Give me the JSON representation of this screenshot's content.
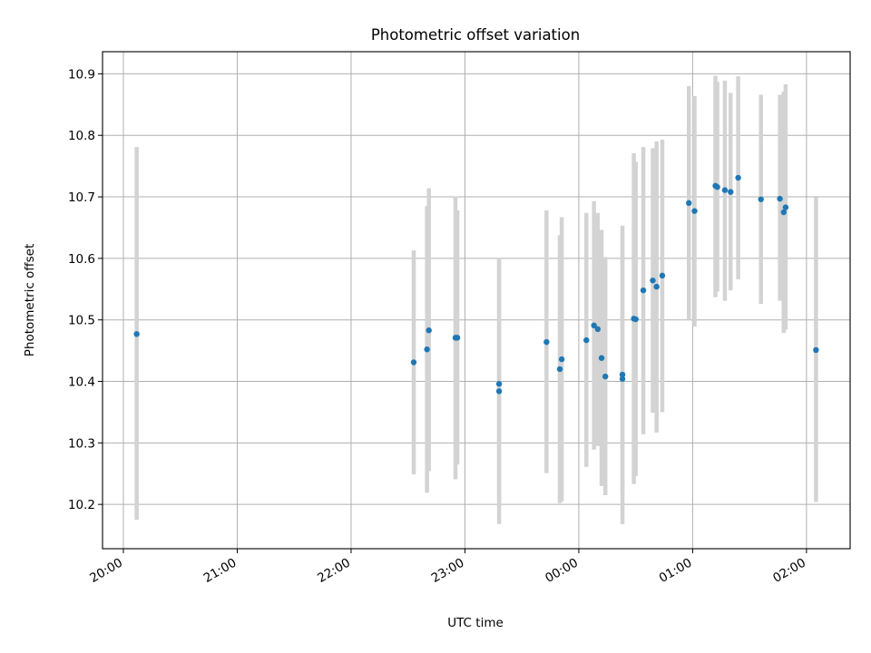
{
  "chart_data": {
    "type": "scatter",
    "title": "Photometric offset variation",
    "xlabel": "UTC time",
    "ylabel": "Photometric offset",
    "x_unit": "UTC time, hours (after 24:00 = next day)",
    "xlim": [
      "19:49",
      "26:23"
    ],
    "ylim": [
      10.128,
      10.936
    ],
    "x_ticks": [
      {
        "t": "20:00",
        "label": "20:00"
      },
      {
        "t": "21:00",
        "label": "21:00"
      },
      {
        "t": "22:00",
        "label": "22:00"
      },
      {
        "t": "23:00",
        "label": "23:00"
      },
      {
        "t": "24:00",
        "label": "00:00"
      },
      {
        "t": "25:00",
        "label": "01:00"
      },
      {
        "t": "26:00",
        "label": "02:00"
      }
    ],
    "y_ticks": [
      10.2,
      10.3,
      10.4,
      10.5,
      10.6,
      10.7,
      10.8,
      10.9
    ],
    "grid": true,
    "marker_color": "#1f77b4",
    "errorbar_color": "#d3d3d3",
    "points": [
      {
        "t": "20:07",
        "y": 10.477,
        "lo": 10.175,
        "hi": 10.781
      },
      {
        "t": "22:33",
        "y": 10.431,
        "lo": 10.249,
        "hi": 10.613
      },
      {
        "t": "22:40",
        "y": 10.452,
        "lo": 10.219,
        "hi": 10.685
      },
      {
        "t": "22:41",
        "y": 10.483,
        "lo": 10.254,
        "hi": 10.714
      },
      {
        "t": "22:55",
        "y": 10.471,
        "lo": 10.241,
        "hi": 10.701
      },
      {
        "t": "22:56",
        "y": 10.471,
        "lo": 10.265,
        "hi": 10.678
      },
      {
        "t": "23:18",
        "y": 10.396,
        "lo": 10.195,
        "hi": 10.598
      },
      {
        "t": "23:18",
        "y": 10.384,
        "lo": 10.168,
        "hi": 10.6
      },
      {
        "t": "23:43",
        "y": 10.464,
        "lo": 10.251,
        "hi": 10.678
      },
      {
        "t": "23:50",
        "y": 10.42,
        "lo": 10.202,
        "hi": 10.638
      },
      {
        "t": "23:51",
        "y": 10.436,
        "lo": 10.205,
        "hi": 10.667
      },
      {
        "t": "24:04",
        "y": 10.467,
        "lo": 10.261,
        "hi": 10.674
      },
      {
        "t": "24:08",
        "y": 10.491,
        "lo": 10.289,
        "hi": 10.693
      },
      {
        "t": "24:10",
        "y": 10.485,
        "lo": 10.295,
        "hi": 10.674
      },
      {
        "t": "24:12",
        "y": 10.438,
        "lo": 10.23,
        "hi": 10.646
      },
      {
        "t": "24:14",
        "y": 10.408,
        "lo": 10.215,
        "hi": 10.602
      },
      {
        "t": "24:23",
        "y": 10.404,
        "lo": 10.168,
        "hi": 10.641
      },
      {
        "t": "24:23",
        "y": 10.411,
        "lo": 10.218,
        "hi": 10.653
      },
      {
        "t": "24:29",
        "y": 10.502,
        "lo": 10.233,
        "hi": 10.771
      },
      {
        "t": "24:30",
        "y": 10.501,
        "lo": 10.246,
        "hi": 10.757
      },
      {
        "t": "24:34",
        "y": 10.548,
        "lo": 10.314,
        "hi": 10.781
      },
      {
        "t": "24:39",
        "y": 10.564,
        "lo": 10.349,
        "hi": 10.779
      },
      {
        "t": "24:41",
        "y": 10.554,
        "lo": 10.317,
        "hi": 10.79
      },
      {
        "t": "24:44",
        "y": 10.572,
        "lo": 10.35,
        "hi": 10.793
      },
      {
        "t": "24:58",
        "y": 10.69,
        "lo": 10.5,
        "hi": 10.88
      },
      {
        "t": "25:01",
        "y": 10.677,
        "lo": 10.489,
        "hi": 10.864
      },
      {
        "t": "25:12",
        "y": 10.718,
        "lo": 10.537,
        "hi": 10.897
      },
      {
        "t": "25:13",
        "y": 10.716,
        "lo": 10.546,
        "hi": 10.887
      },
      {
        "t": "25:17",
        "y": 10.711,
        "lo": 10.531,
        "hi": 10.889
      },
      {
        "t": "25:20",
        "y": 10.708,
        "lo": 10.548,
        "hi": 10.869
      },
      {
        "t": "25:24",
        "y": 10.731,
        "lo": 10.566,
        "hi": 10.896
      },
      {
        "t": "25:36",
        "y": 10.696,
        "lo": 10.526,
        "hi": 10.866
      },
      {
        "t": "25:46",
        "y": 10.697,
        "lo": 10.531,
        "hi": 10.866
      },
      {
        "t": "25:48",
        "y": 10.675,
        "lo": 10.479,
        "hi": 10.871
      },
      {
        "t": "25:49",
        "y": 10.683,
        "lo": 10.484,
        "hi": 10.883
      },
      {
        "t": "26:05",
        "y": 10.451,
        "lo": 10.204,
        "hi": 10.699
      }
    ]
  }
}
